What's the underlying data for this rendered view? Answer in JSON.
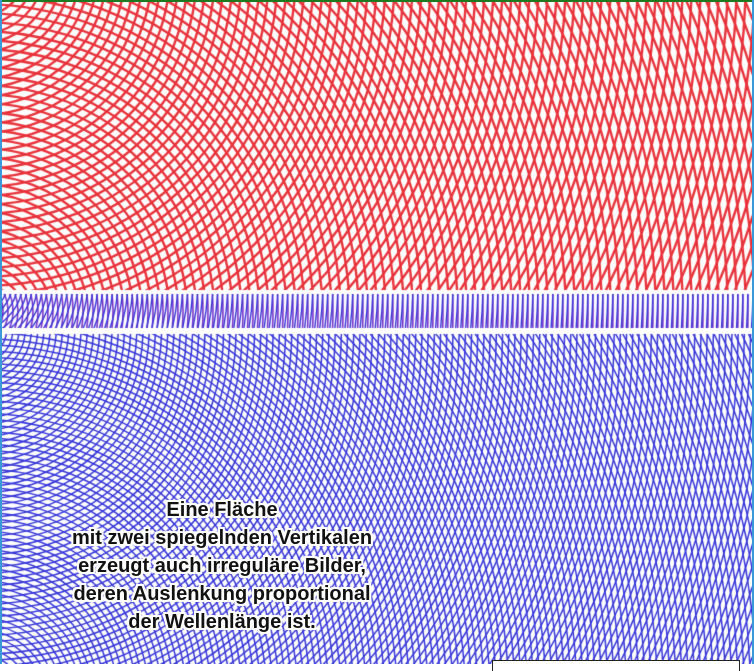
{
  "caption": {
    "lines": [
      "Eine Fläche",
      "mit zwei spiegelnden Vertikalen",
      "erzeugt auch irreguläre Bilder,",
      "deren Auslenkung proportional",
      "der Wellenlänge ist."
    ]
  },
  "colors": {
    "red_waves": "#e8323a",
    "blue_waves": "#3434d8",
    "purple_band": "#7a36c8",
    "background": "#ffffff",
    "frame_top": "#1f7a1f",
    "frame_side": "#3a9ad9"
  }
}
